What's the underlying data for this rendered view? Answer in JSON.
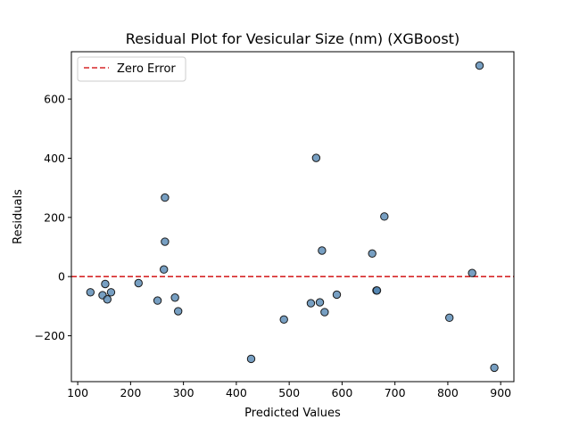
{
  "chart_data": {
    "type": "scatter",
    "title": "Residual Plot for Vesicular  Size (nm) (XGBoost)",
    "xlabel": "Predicted Values",
    "ylabel": "Residuals",
    "xlim": [
      88,
      925
    ],
    "ylim": [
      -355,
      760
    ],
    "xticks": [
      100,
      200,
      300,
      400,
      500,
      600,
      700,
      800,
      900
    ],
    "yticks": [
      -200,
      0,
      200,
      400,
      600
    ],
    "grid": false,
    "legend": {
      "position": "top-left",
      "entries": [
        "Zero Error"
      ]
    },
    "reference_line": {
      "y": 0,
      "label": "Zero Error",
      "style": "dashed",
      "color": "#d62728"
    },
    "point_color": "#4a7fad",
    "point_edge_color": "#1a1a1a",
    "series": [
      {
        "points": [
          [
            124,
            -53
          ],
          [
            147,
            -63
          ],
          [
            152,
            -25
          ],
          [
            156,
            -77
          ],
          [
            163,
            -53
          ],
          [
            215,
            -22
          ],
          [
            251,
            -81
          ],
          [
            263,
            24
          ],
          [
            265,
            118
          ],
          [
            265,
            267
          ],
          [
            284,
            -71
          ],
          [
            290,
            -117
          ],
          [
            428,
            -278
          ],
          [
            490,
            -145
          ],
          [
            541,
            -90
          ],
          [
            551,
            401
          ],
          [
            558,
            -87
          ],
          [
            562,
            88
          ],
          [
            567,
            -120
          ],
          [
            590,
            -61
          ],
          [
            657,
            78
          ],
          [
            665,
            -47
          ],
          [
            666,
            -47
          ],
          [
            680,
            203
          ],
          [
            803,
            -139
          ],
          [
            846,
            12
          ],
          [
            860,
            713
          ],
          [
            888,
            -308
          ]
        ]
      }
    ]
  }
}
